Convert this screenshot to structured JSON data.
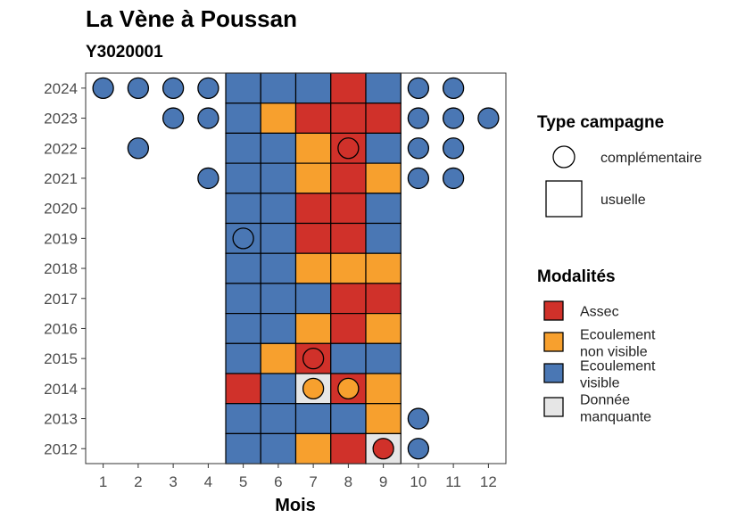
{
  "chart_data": {
    "type": "heatmap",
    "title": "La Vène à Poussan",
    "subtitle": "Y3020001",
    "xlabel": "Mois",
    "ylabel": "",
    "x_ticks": [
      "1",
      "2",
      "3",
      "4",
      "5",
      "6",
      "7",
      "8",
      "9",
      "10",
      "11",
      "12"
    ],
    "y_ticks": [
      "2012",
      "2013",
      "2014",
      "2015",
      "2016",
      "2017",
      "2018",
      "2019",
      "2020",
      "2021",
      "2022",
      "2023",
      "2024"
    ],
    "colors": {
      "Assec": "#d0312a",
      "Ecoulement non visible": "#f7a02e",
      "Ecoulement visible": "#4a77b4",
      "Donnée manquante": "#e6e6e6"
    },
    "legend_type": {
      "title": "Type campagne",
      "items": [
        "complémentaire",
        "usuelle"
      ]
    },
    "legend_modalites": {
      "title": "Modalités",
      "items": [
        {
          "label_lines": [
            "Assec"
          ],
          "key": "Assec"
        },
        {
          "label_lines": [
            "Ecoulement",
            "non visible"
          ],
          "key": "Ecoulement non visible"
        },
        {
          "label_lines": [
            "Ecoulement",
            "visible"
          ],
          "key": "Ecoulement visible"
        },
        {
          "label_lines": [
            "Donnée",
            "manquante"
          ],
          "key": "Donnée manquante"
        }
      ]
    },
    "usuelle": [
      {
        "year": 2024,
        "month": 5,
        "status": "Ecoulement visible"
      },
      {
        "year": 2024,
        "month": 6,
        "status": "Ecoulement visible"
      },
      {
        "year": 2024,
        "month": 7,
        "status": "Ecoulement visible"
      },
      {
        "year": 2024,
        "month": 8,
        "status": "Assec"
      },
      {
        "year": 2024,
        "month": 9,
        "status": "Ecoulement visible"
      },
      {
        "year": 2023,
        "month": 5,
        "status": "Ecoulement visible"
      },
      {
        "year": 2023,
        "month": 6,
        "status": "Ecoulement non visible"
      },
      {
        "year": 2023,
        "month": 7,
        "status": "Assec"
      },
      {
        "year": 2023,
        "month": 8,
        "status": "Assec"
      },
      {
        "year": 2023,
        "month": 9,
        "status": "Assec"
      },
      {
        "year": 2022,
        "month": 5,
        "status": "Ecoulement visible"
      },
      {
        "year": 2022,
        "month": 6,
        "status": "Ecoulement visible"
      },
      {
        "year": 2022,
        "month": 7,
        "status": "Ecoulement non visible"
      },
      {
        "year": 2022,
        "month": 8,
        "status": "Assec"
      },
      {
        "year": 2022,
        "month": 9,
        "status": "Ecoulement visible"
      },
      {
        "year": 2021,
        "month": 5,
        "status": "Ecoulement visible"
      },
      {
        "year": 2021,
        "month": 6,
        "status": "Ecoulement visible"
      },
      {
        "year": 2021,
        "month": 7,
        "status": "Ecoulement non visible"
      },
      {
        "year": 2021,
        "month": 8,
        "status": "Assec"
      },
      {
        "year": 2021,
        "month": 9,
        "status": "Ecoulement non visible"
      },
      {
        "year": 2020,
        "month": 5,
        "status": "Ecoulement visible"
      },
      {
        "year": 2020,
        "month": 6,
        "status": "Ecoulement visible"
      },
      {
        "year": 2020,
        "month": 7,
        "status": "Assec"
      },
      {
        "year": 2020,
        "month": 8,
        "status": "Assec"
      },
      {
        "year": 2020,
        "month": 9,
        "status": "Ecoulement visible"
      },
      {
        "year": 2019,
        "month": 5,
        "status": "Ecoulement visible"
      },
      {
        "year": 2019,
        "month": 6,
        "status": "Ecoulement visible"
      },
      {
        "year": 2019,
        "month": 7,
        "status": "Assec"
      },
      {
        "year": 2019,
        "month": 8,
        "status": "Assec"
      },
      {
        "year": 2019,
        "month": 9,
        "status": "Ecoulement visible"
      },
      {
        "year": 2018,
        "month": 5,
        "status": "Ecoulement visible"
      },
      {
        "year": 2018,
        "month": 6,
        "status": "Ecoulement visible"
      },
      {
        "year": 2018,
        "month": 7,
        "status": "Ecoulement non visible"
      },
      {
        "year": 2018,
        "month": 8,
        "status": "Ecoulement non visible"
      },
      {
        "year": 2018,
        "month": 9,
        "status": "Ecoulement non visible"
      },
      {
        "year": 2017,
        "month": 5,
        "status": "Ecoulement visible"
      },
      {
        "year": 2017,
        "month": 6,
        "status": "Ecoulement visible"
      },
      {
        "year": 2017,
        "month": 7,
        "status": "Ecoulement visible"
      },
      {
        "year": 2017,
        "month": 8,
        "status": "Assec"
      },
      {
        "year": 2017,
        "month": 9,
        "status": "Assec"
      },
      {
        "year": 2016,
        "month": 5,
        "status": "Ecoulement visible"
      },
      {
        "year": 2016,
        "month": 6,
        "status": "Ecoulement visible"
      },
      {
        "year": 2016,
        "month": 7,
        "status": "Ecoulement non visible"
      },
      {
        "year": 2016,
        "month": 8,
        "status": "Assec"
      },
      {
        "year": 2016,
        "month": 9,
        "status": "Ecoulement non visible"
      },
      {
        "year": 2015,
        "month": 5,
        "status": "Ecoulement visible"
      },
      {
        "year": 2015,
        "month": 6,
        "status": "Ecoulement non visible"
      },
      {
        "year": 2015,
        "month": 7,
        "status": "Assec"
      },
      {
        "year": 2015,
        "month": 8,
        "status": "Ecoulement visible"
      },
      {
        "year": 2015,
        "month": 9,
        "status": "Ecoulement visible"
      },
      {
        "year": 2014,
        "month": 5,
        "status": "Assec"
      },
      {
        "year": 2014,
        "month": 6,
        "status": "Ecoulement visible"
      },
      {
        "year": 2014,
        "month": 7,
        "status": "Donnée manquante"
      },
      {
        "year": 2014,
        "month": 8,
        "status": "Assec"
      },
      {
        "year": 2014,
        "month": 9,
        "status": "Ecoulement non visible"
      },
      {
        "year": 2013,
        "month": 5,
        "status": "Ecoulement visible"
      },
      {
        "year": 2013,
        "month": 6,
        "status": "Ecoulement visible"
      },
      {
        "year": 2013,
        "month": 7,
        "status": "Ecoulement visible"
      },
      {
        "year": 2013,
        "month": 8,
        "status": "Ecoulement visible"
      },
      {
        "year": 2013,
        "month": 9,
        "status": "Ecoulement non visible"
      },
      {
        "year": 2012,
        "month": 5,
        "status": "Ecoulement visible"
      },
      {
        "year": 2012,
        "month": 6,
        "status": "Ecoulement visible"
      },
      {
        "year": 2012,
        "month": 7,
        "status": "Ecoulement non visible"
      },
      {
        "year": 2012,
        "month": 8,
        "status": "Assec"
      },
      {
        "year": 2012,
        "month": 9,
        "status": "Donnée manquante"
      }
    ],
    "complementaire": [
      {
        "year": 2024,
        "month": 1,
        "status": "Ecoulement visible"
      },
      {
        "year": 2024,
        "month": 2,
        "status": "Ecoulement visible"
      },
      {
        "year": 2024,
        "month": 3,
        "status": "Ecoulement visible"
      },
      {
        "year": 2024,
        "month": 4,
        "status": "Ecoulement visible"
      },
      {
        "year": 2024,
        "month": 10,
        "status": "Ecoulement visible"
      },
      {
        "year": 2024,
        "month": 11,
        "status": "Ecoulement visible"
      },
      {
        "year": 2023,
        "month": 3,
        "status": "Ecoulement visible"
      },
      {
        "year": 2023,
        "month": 4,
        "status": "Ecoulement visible"
      },
      {
        "year": 2023,
        "month": 10,
        "status": "Ecoulement visible"
      },
      {
        "year": 2023,
        "month": 11,
        "status": "Ecoulement visible"
      },
      {
        "year": 2023,
        "month": 12,
        "status": "Ecoulement visible"
      },
      {
        "year": 2022,
        "month": 2,
        "status": "Ecoulement visible"
      },
      {
        "year": 2022,
        "month": 8,
        "status": "Assec"
      },
      {
        "year": 2022,
        "month": 10,
        "status": "Ecoulement visible"
      },
      {
        "year": 2022,
        "month": 11,
        "status": "Ecoulement visible"
      },
      {
        "year": 2021,
        "month": 4,
        "status": "Ecoulement visible"
      },
      {
        "year": 2021,
        "month": 10,
        "status": "Ecoulement visible"
      },
      {
        "year": 2021,
        "month": 11,
        "status": "Ecoulement visible"
      },
      {
        "year": 2019,
        "month": 5,
        "status": "Ecoulement visible"
      },
      {
        "year": 2015,
        "month": 7,
        "status": "Assec"
      },
      {
        "year": 2014,
        "month": 7,
        "status": "Ecoulement non visible"
      },
      {
        "year": 2014,
        "month": 8,
        "status": "Ecoulement non visible"
      },
      {
        "year": 2013,
        "month": 10,
        "status": "Ecoulement visible"
      },
      {
        "year": 2012,
        "month": 9,
        "status": "Assec"
      },
      {
        "year": 2012,
        "month": 10,
        "status": "Ecoulement visible"
      }
    ]
  }
}
